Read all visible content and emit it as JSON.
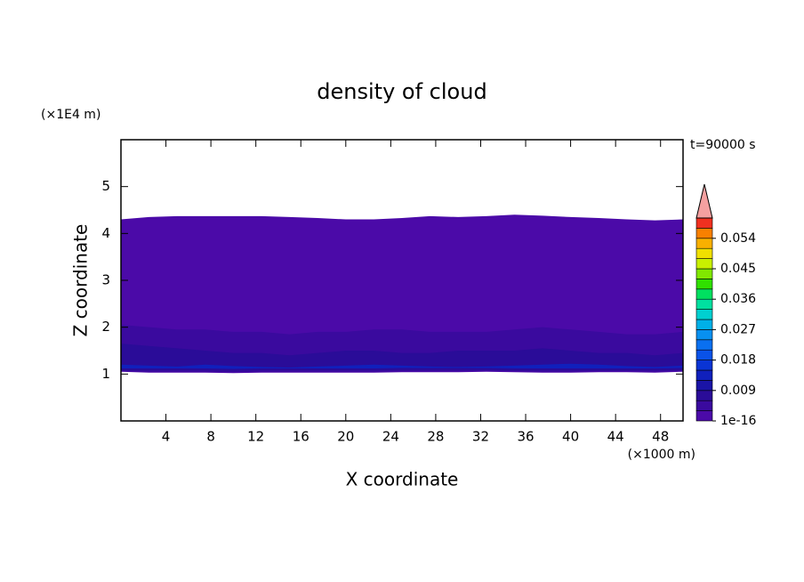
{
  "chart_data": {
    "type": "contour",
    "title": "density of cloud",
    "x_label": "X coordinate",
    "y_label": "Z coordinate",
    "x_unit": "(×1000 m)",
    "y_unit": "(×1E4 m)",
    "time_label": "t=90000 s",
    "xlim": [
      0,
      50
    ],
    "xticks": [
      4,
      8,
      12,
      16,
      20,
      24,
      28,
      32,
      36,
      40,
      44,
      48
    ],
    "ylim": [
      0,
      6
    ],
    "yticks": [
      1,
      2,
      3,
      4,
      5
    ],
    "clim": [
      0,
      0.06
    ],
    "cticks": [
      {
        "value": 1e-16,
        "label": "1e-16"
      },
      0.009,
      0.018,
      0.027,
      0.036,
      0.045,
      0.054
    ],
    "clevel_step": 0.003,
    "colors": [
      "#4b0aa8",
      "#3a0a9e",
      "#2a0c98",
      "#1a14a6",
      "#1020bc",
      "#0a34d4",
      "#0a52e8",
      "#0a70f0",
      "#0890f0",
      "#00b0e8",
      "#00d0d0",
      "#00e0a0",
      "#00e060",
      "#30e000",
      "#80e800",
      "#c8f000",
      "#f0e000",
      "#f8b000",
      "#f88000",
      "#f03020"
    ],
    "extend_color": "#f4a0a0",
    "x": [
      0,
      2.5,
      5,
      7.5,
      10,
      12.5,
      15,
      17.5,
      20,
      22.5,
      25,
      27.5,
      30,
      32.5,
      35,
      37.5,
      40,
      42.5,
      45,
      47.5,
      50
    ],
    "contours": [
      {
        "value": 1e-16,
        "top": [
          4.3,
          4.35,
          4.37,
          4.37,
          4.37,
          4.37,
          4.35,
          4.33,
          4.3,
          4.3,
          4.33,
          4.37,
          4.35,
          4.37,
          4.4,
          4.38,
          4.35,
          4.33,
          4.3,
          4.28,
          4.3
        ],
        "base": [
          1.05,
          1.03,
          1.03,
          1.03,
          1.02,
          1.03,
          1.03,
          1.03,
          1.03,
          1.03,
          1.04,
          1.04,
          1.04,
          1.05,
          1.04,
          1.03,
          1.03,
          1.04,
          1.04,
          1.03,
          1.05
        ]
      },
      {
        "value": 0.003,
        "top": [
          2.05,
          2.0,
          1.95,
          1.95,
          1.9,
          1.9,
          1.85,
          1.9,
          1.9,
          1.95,
          1.95,
          1.9,
          1.9,
          1.9,
          1.95,
          2.0,
          1.95,
          1.9,
          1.85,
          1.85,
          1.9
        ],
        "base": [
          1.06,
          1.05,
          1.05,
          1.05,
          1.04,
          1.05,
          1.05,
          1.05,
          1.05,
          1.05,
          1.06,
          1.06,
          1.06,
          1.07,
          1.06,
          1.05,
          1.05,
          1.06,
          1.06,
          1.05,
          1.07
        ]
      },
      {
        "value": 0.006,
        "top": [
          1.65,
          1.6,
          1.55,
          1.5,
          1.45,
          1.45,
          1.4,
          1.45,
          1.5,
          1.5,
          1.45,
          1.45,
          1.5,
          1.5,
          1.5,
          1.55,
          1.5,
          1.45,
          1.45,
          1.4,
          1.45
        ],
        "base": [
          1.08,
          1.08,
          1.08,
          1.08,
          1.07,
          1.08,
          1.08,
          1.08,
          1.08,
          1.08,
          1.09,
          1.09,
          1.09,
          1.09,
          1.08,
          1.08,
          1.08,
          1.08,
          1.08,
          1.08,
          1.09
        ]
      },
      {
        "value": 0.009,
        "top": [
          1.35,
          1.3,
          1.28,
          1.3,
          1.25,
          1.25,
          1.22,
          1.25,
          1.28,
          1.3,
          1.3,
          1.28,
          1.25,
          1.25,
          1.28,
          1.3,
          1.3,
          1.28,
          1.25,
          1.25,
          1.3
        ],
        "base": [
          1.1,
          1.1,
          1.1,
          1.1,
          1.09,
          1.1,
          1.1,
          1.1,
          1.1,
          1.1,
          1.11,
          1.11,
          1.11,
          1.11,
          1.1,
          1.1,
          1.1,
          1.1,
          1.1,
          1.1,
          1.11
        ]
      },
      {
        "value": 0.012,
        "top": [
          1.2,
          1.18,
          1.16,
          1.2,
          1.17,
          1.15,
          1.14,
          1.16,
          1.18,
          1.2,
          1.18,
          1.16,
          1.15,
          1.16,
          1.18,
          1.2,
          1.22,
          1.2,
          1.17,
          1.15,
          1.18
        ],
        "base": [
          1.12,
          1.12,
          1.12,
          1.12,
          1.11,
          1.12,
          1.12,
          1.12,
          1.12,
          1.12,
          1.13,
          1.13,
          1.13,
          1.13,
          1.12,
          1.12,
          1.12,
          1.12,
          1.12,
          1.12,
          1.13
        ]
      }
    ]
  }
}
